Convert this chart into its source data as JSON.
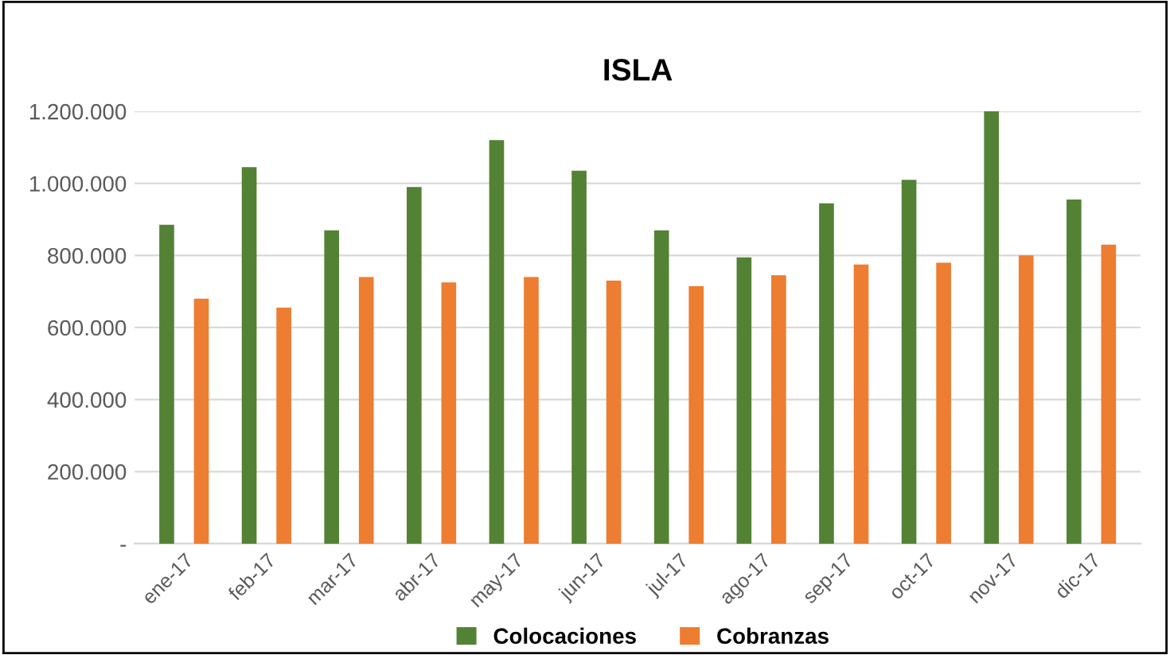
{
  "chart_data": {
    "type": "bar",
    "title": "ISLA",
    "categories": [
      "ene-17",
      "feb-17",
      "mar-17",
      "abr-17",
      "may-17",
      "jun-17",
      "jul-17",
      "ago-17",
      "sep-17",
      "oct-17",
      "nov-17",
      "dic-17"
    ],
    "series": [
      {
        "name": "Colocaciones",
        "color": "#548235",
        "values": [
          885000,
          1045000,
          870000,
          990000,
          1120000,
          1035000,
          870000,
          795000,
          945000,
          1010000,
          1200000,
          955000
        ]
      },
      {
        "name": "Cobranzas",
        "color": "#ed7d31",
        "values": [
          680000,
          655000,
          740000,
          725000,
          740000,
          730000,
          715000,
          745000,
          775000,
          780000,
          800000,
          830000
        ]
      }
    ],
    "ylim": [
      0,
      1200000
    ],
    "yticks": [
      {
        "value": 0,
        "label": "-"
      },
      {
        "value": 200000,
        "label": "200.000"
      },
      {
        "value": 400000,
        "label": "400.000"
      },
      {
        "value": 600000,
        "label": "600.000"
      },
      {
        "value": 800000,
        "label": "800.000"
      },
      {
        "value": 1000000,
        "label": "1.000.000"
      },
      {
        "value": 1200000,
        "label": "1.200.000"
      }
    ],
    "grid": "y",
    "legend": "bottom"
  }
}
